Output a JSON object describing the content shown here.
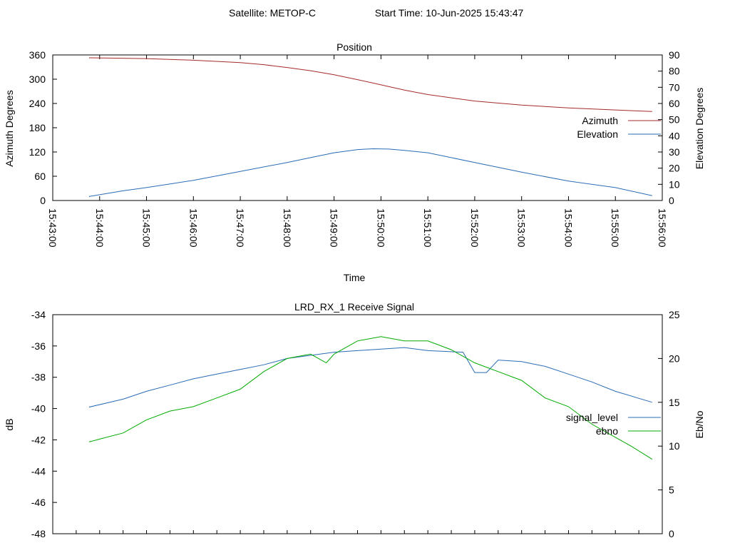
{
  "header": {
    "satellite": "Satellite: METOP-C",
    "start_time": "Start Time: 10-Jun-2025 15:43:47"
  },
  "chart_data": [
    {
      "type": "line",
      "title": "Position",
      "xlabel": "Time",
      "ylabel": "Azimuth Degrees",
      "y2label": "Elevation Degrees",
      "xlim": [
        "15:43:00",
        "15:56:00"
      ],
      "ylim": [
        0,
        360
      ],
      "y2lim": [
        0,
        90
      ],
      "x_ticks": [
        "15:43:00",
        "15:44:00",
        "15:45:00",
        "15:46:00",
        "15:47:00",
        "15:48:00",
        "15:49:00",
        "15:50:00",
        "15:51:00",
        "15:52:00",
        "15:53:00",
        "15:54:00",
        "15:55:00",
        "15:56:00"
      ],
      "y_ticks": [
        "0",
        "60",
        "120",
        "180",
        "240",
        "300",
        "360"
      ],
      "y2_ticks": [
        "0",
        "10",
        "20",
        "30",
        "40",
        "50",
        "60",
        "70",
        "80",
        "90"
      ],
      "legend_position": "right",
      "grid": false,
      "series": [
        {
          "name": "Azimuth",
          "axis": "y",
          "color": "#a52a2a",
          "x": [
            "15:43:47",
            "15:45:00",
            "15:46:00",
            "15:47:00",
            "15:47:30",
            "15:48:00",
            "15:48:30",
            "15:49:00",
            "15:49:30",
            "15:50:00",
            "15:50:30",
            "15:51:00",
            "15:52:00",
            "15:53:00",
            "15:54:00",
            "15:55:00",
            "15:55:47"
          ],
          "y": [
            353,
            351,
            347,
            341,
            336,
            329,
            321,
            311,
            299,
            286,
            273,
            262,
            246,
            236,
            229,
            224,
            220
          ]
        },
        {
          "name": "Elevation",
          "axis": "y2",
          "color": "#2a6bb5",
          "x": [
            "15:43:47",
            "15:44:30",
            "15:45:00",
            "15:46:00",
            "15:47:00",
            "15:48:00",
            "15:48:30",
            "15:49:00",
            "15:49:30",
            "15:49:50",
            "15:50:10",
            "15:50:30",
            "15:51:00",
            "15:52:00",
            "15:53:00",
            "15:54:00",
            "15:55:00",
            "15:55:47"
          ],
          "y": [
            2.5,
            6,
            8,
            12.5,
            18,
            23.5,
            26.5,
            29.5,
            31.5,
            32,
            31.8,
            31,
            29.5,
            23.5,
            17.5,
            12,
            8,
            3
          ]
        }
      ]
    },
    {
      "type": "line",
      "title": "LRD_RX_1 Receive Signal",
      "xlabel": "",
      "ylabel": "dB",
      "y2label": "Eb/No",
      "xlim": [
        "15:43:00",
        "15:56:00"
      ],
      "ylim": [
        -48,
        -34
      ],
      "y2lim": [
        0,
        25
      ],
      "y_ticks": [
        "-34",
        "-36",
        "-38",
        "-40",
        "-42",
        "-44",
        "-46",
        "-48"
      ],
      "y2_ticks": [
        "0",
        "5",
        "10",
        "15",
        "20",
        "25"
      ],
      "legend_position": "right",
      "grid": false,
      "series": [
        {
          "name": "signal_level",
          "axis": "y",
          "color": "#2a6bb5",
          "x": [
            "15:43:47",
            "15:44:30",
            "15:45:00",
            "15:45:30",
            "15:46:00",
            "15:46:30",
            "15:47:00",
            "15:47:30",
            "15:48:00",
            "15:48:30",
            "15:49:00",
            "15:49:30",
            "15:50:00",
            "15:50:30",
            "15:51:00",
            "15:51:45",
            "15:52:00",
            "15:52:15",
            "15:52:30",
            "15:53:00",
            "15:53:30",
            "15:54:00",
            "15:54:30",
            "15:55:00",
            "15:55:47"
          ],
          "y": [
            -39.9,
            -39.4,
            -38.9,
            -38.5,
            -38.1,
            -37.8,
            -37.5,
            -37.2,
            -36.8,
            -36.6,
            -36.4,
            -36.3,
            -36.2,
            -36.1,
            -36.3,
            -36.4,
            -37.7,
            -37.7,
            -36.9,
            -37.0,
            -37.3,
            -37.8,
            -38.3,
            -38.9,
            -39.6
          ]
        },
        {
          "name": "ebno",
          "axis": "y2",
          "color": "#00aa00",
          "x": [
            "15:43:47",
            "15:44:00",
            "15:44:30",
            "15:45:00",
            "15:45:30",
            "15:46:00",
            "15:46:30",
            "15:47:00",
            "15:47:30",
            "15:48:00",
            "15:48:30",
            "15:48:50",
            "15:49:00",
            "15:49:30",
            "15:50:00",
            "15:50:30",
            "15:51:00",
            "15:51:30",
            "15:52:00",
            "15:52:30",
            "15:53:00",
            "15:53:30",
            "15:54:00",
            "15:54:30",
            "15:55:00",
            "15:55:20",
            "15:55:47"
          ],
          "y": [
            10.5,
            10.8,
            11.5,
            13,
            14,
            14.5,
            15.5,
            16.5,
            18.5,
            20,
            20.5,
            19.5,
            20.5,
            22,
            22.5,
            22,
            22,
            21,
            19.5,
            18.5,
            17.5,
            15.5,
            14.5,
            12.5,
            11,
            10,
            8.5
          ]
        }
      ]
    }
  ]
}
